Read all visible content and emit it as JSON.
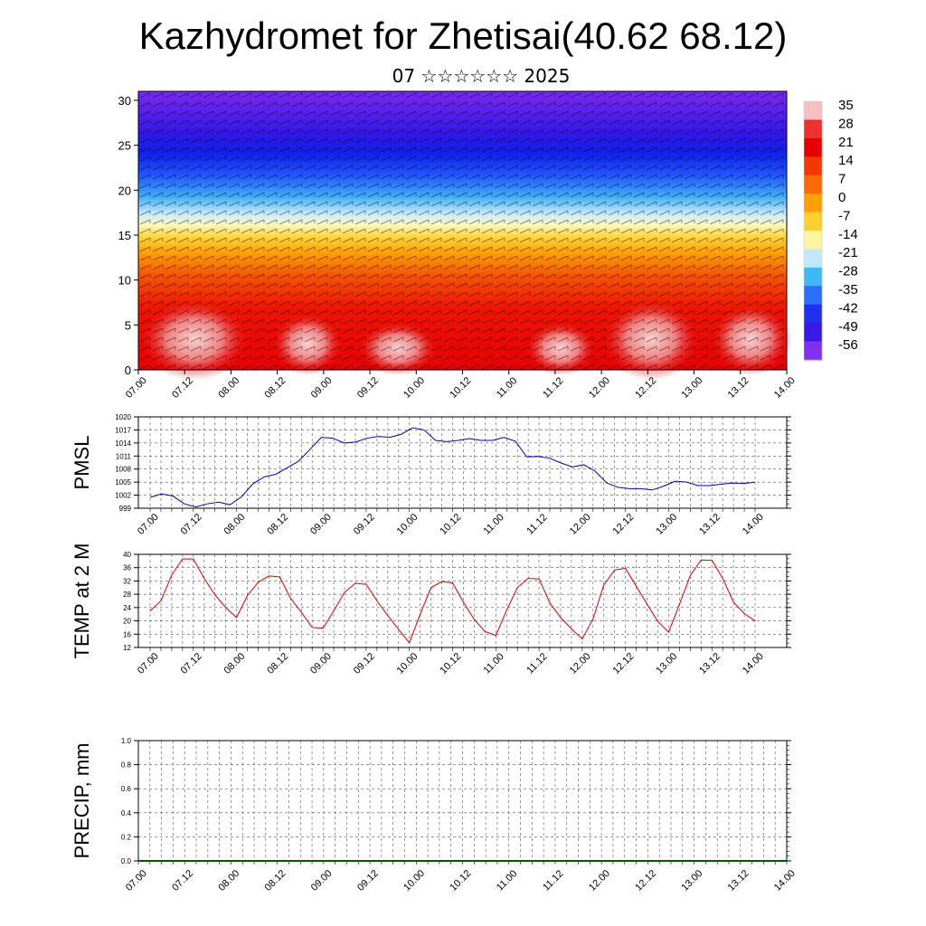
{
  "title": "Kazhydromet for Zhetisai(40.62 68.12)",
  "subtitle": "07 ☆☆☆☆☆☆ 2025",
  "time_labels": [
    "07.00",
    "07.12",
    "08.00",
    "08.12",
    "09.00",
    "09.12",
    "10.00",
    "10.12",
    "11.00",
    "11.12",
    "12.00",
    "12.12",
    "13.00",
    "13.12",
    "14.00"
  ],
  "colors": {
    "pmsl_line": "#0000cc",
    "temp_line": "#dd0000",
    "grid": "#555555"
  },
  "chart_data": [
    {
      "type": "heatmap",
      "name": "cross-section",
      "x_labels": [
        "07.00",
        "07.12",
        "08.00",
        "08.12",
        "09.00",
        "09.12",
        "10.00",
        "10.12",
        "11.00",
        "11.12",
        "12.00",
        "12.12",
        "13.00",
        "13.12",
        "14.00"
      ],
      "y_ticks": [
        0,
        5,
        10,
        15,
        20,
        25,
        30
      ],
      "ylim": [
        0,
        31
      ],
      "colorbar": {
        "labels": [
          "35",
          "28",
          "21",
          "14",
          "7",
          "0",
          "-7",
          "-14",
          "-21",
          "-28",
          "-35",
          "-42",
          "-49",
          "-56"
        ],
        "colors": [
          "#f5c0c0",
          "#ee3030",
          "#e60000",
          "#f23a00",
          "#ff6a00",
          "#ffa000",
          "#ffd030",
          "#fff5a0",
          "#c0e8ff",
          "#40b8f5",
          "#2a70ff",
          "#2030f0",
          "#3a18e8",
          "#8030f0"
        ]
      }
    },
    {
      "type": "line",
      "ylabel": "PMSL",
      "ylim": [
        999,
        1020
      ],
      "y_ticks": [
        999,
        1002,
        1005,
        1008,
        1011,
        1014,
        1017,
        1020
      ],
      "x_labels": [
        "07.00",
        "07.12",
        "08.00",
        "08.12",
        "09.00",
        "09.12",
        "10.00",
        "10.12",
        "11.00",
        "11.12",
        "12.00",
        "12.12",
        "13.00",
        "13.12",
        "14.00"
      ],
      "values": [
        1001.5,
        1002.3,
        1001.8,
        1000.0,
        999.3,
        1000.0,
        1000.4,
        999.8,
        1001.6,
        1004.6,
        1006.2,
        1006.8,
        1008.3,
        1009.8,
        1012.5,
        1015.3,
        1015.1,
        1014.0,
        1014.2,
        1015.1,
        1015.5,
        1015.3,
        1016.0,
        1017.5,
        1017.0,
        1014.6,
        1014.3,
        1014.6,
        1015.0,
        1014.6,
        1014.6,
        1015.3,
        1014.4,
        1010.8,
        1010.9,
        1010.5,
        1009.4,
        1008.5,
        1009.0,
        1007.5,
        1004.8,
        1003.8,
        1003.5,
        1003.5,
        1003.2,
        1004.1,
        1005.2,
        1005.0,
        1004.2,
        1004.2,
        1004.5,
        1004.8,
        1004.7,
        1005.0
      ]
    },
    {
      "type": "line",
      "ylabel": "TEMP at 2 M",
      "ylim": [
        12,
        40
      ],
      "y_ticks": [
        12,
        16,
        20,
        24,
        28,
        32,
        36,
        40
      ],
      "x_labels": [
        "07.00",
        "07.12",
        "08.00",
        "08.12",
        "09.00",
        "09.12",
        "10.00",
        "10.12",
        "11.00",
        "11.12",
        "12.00",
        "12.12",
        "13.00",
        "13.12",
        "14.00"
      ],
      "values": [
        23.0,
        26.0,
        33.8,
        38.6,
        38.6,
        32.8,
        27.8,
        24.0,
        21.0,
        27.6,
        31.6,
        33.5,
        33.2,
        26.8,
        22.6,
        18.0,
        17.8,
        23.0,
        28.6,
        31.3,
        31.0,
        26.0,
        21.6,
        17.4,
        13.4,
        22.0,
        30.0,
        31.8,
        31.4,
        25.6,
        20.4,
        16.8,
        15.6,
        23.2,
        30.0,
        32.8,
        32.6,
        25.4,
        21.0,
        17.6,
        14.6,
        20.6,
        30.8,
        35.3,
        35.8,
        30.4,
        25.0,
        19.8,
        16.6,
        25.0,
        33.6,
        38.3,
        38.2,
        32.8,
        25.6,
        22.2,
        20.0
      ]
    },
    {
      "type": "bar",
      "ylabel": "PRECIP, mm",
      "ylim": [
        0.0,
        1.0
      ],
      "y_ticks": [
        "0.0",
        "0.2",
        "0.4",
        "0.6",
        "0.8",
        "1.0"
      ],
      "x_labels": [
        "07.00",
        "07.12",
        "08.00",
        "08.12",
        "09.00",
        "09.12",
        "10.00",
        "10.12",
        "11.00",
        "11.12",
        "12.00",
        "12.12",
        "13.00",
        "13.12",
        "14.00"
      ],
      "values": [
        0,
        0,
        0,
        0,
        0,
        0,
        0,
        0,
        0,
        0,
        0,
        0,
        0,
        0,
        0,
        0,
        0,
        0,
        0,
        0,
        0,
        0,
        0,
        0,
        0,
        0,
        0,
        0,
        0,
        0,
        0,
        0,
        0,
        0,
        0,
        0,
        0,
        0,
        0,
        0,
        0,
        0,
        0,
        0,
        0,
        0,
        0,
        0,
        0,
        0,
        0,
        0,
        0,
        0,
        0,
        0,
        0
      ]
    }
  ]
}
